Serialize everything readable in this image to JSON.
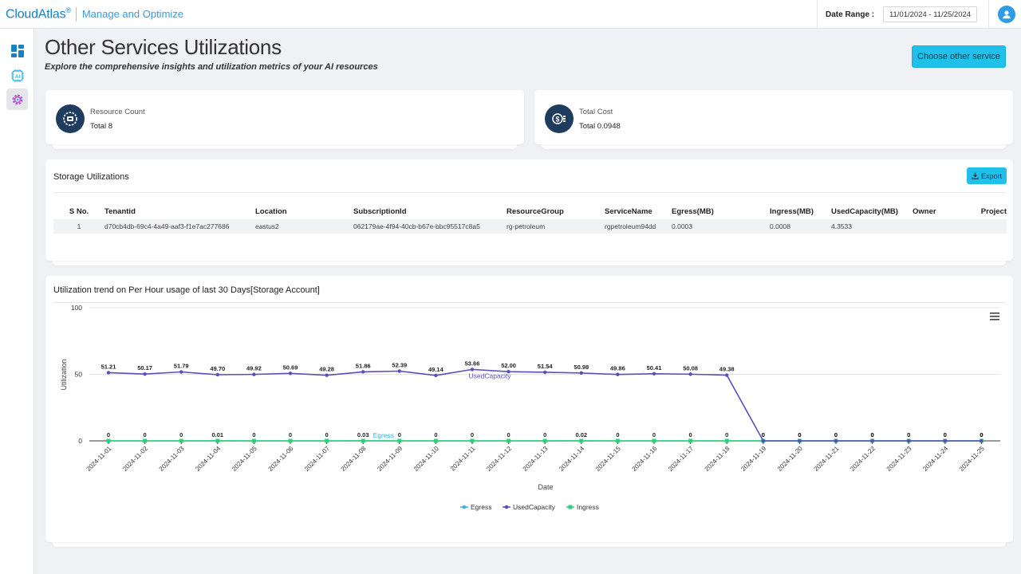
{
  "header": {
    "brand": "CloudAtlas",
    "brand_mark": "®",
    "tagline": "Manage and Optimize",
    "date_range_label": "Date Range :",
    "date_range_value": "11/01/2024 - 11/25/2024",
    "avatar_icon": "user-icon"
  },
  "sidebar": {
    "items": [
      {
        "icon": "dashboard-icon",
        "active": false
      },
      {
        "icon": "ai-chip-icon",
        "active": false
      },
      {
        "icon": "gear-icon",
        "active": true
      }
    ]
  },
  "page": {
    "title": "Other Services Utilizations",
    "subtitle": "Explore the comprehensive insights and utilization metrics of your AI resources",
    "choose_button": "Choose other service"
  },
  "stats": {
    "resource_count": {
      "label": "Resource Count",
      "value": "Total 8",
      "icon": "resource-icon"
    },
    "total_cost": {
      "label": "Total Cost",
      "value": "Total 0.0948",
      "icon": "cost-icon"
    }
  },
  "storage": {
    "title": "Storage Utilizations",
    "export_label": "Export",
    "columns": [
      "S No.",
      "Tenantid",
      "Location",
      "SubscriptionId",
      "ResourceGroup",
      "ServiceName",
      "Egress(MB)",
      "Ingress(MB)",
      "UsedCapacity(MB)",
      "Owner",
      "Project"
    ],
    "rows": [
      [
        "1",
        "d70cb4db-69c4-4a49-aaf3-f1e7ac277686",
        "eastus2",
        "062179ae-4f94-40cb-b67e-bbc95517c8a5",
        "rg-petroleum",
        "rgpetroleum94dd",
        "0.0003",
        "0.0008",
        "4.3533",
        "",
        ""
      ]
    ]
  },
  "trend": {
    "title": "Utilization trend on Per Hour usage of last 30 Days[Storage Account]"
  },
  "colors": {
    "egress": "#3cb0e0",
    "used_capacity": "#5a4fb8",
    "ingress": "#2ed07a",
    "accent": "#1fc1ea"
  },
  "chart_data": {
    "type": "line",
    "xlabel": "Date",
    "ylabel": "Utilization",
    "ylim": [
      0,
      100
    ],
    "yticks": [
      0,
      50,
      100
    ],
    "grid": true,
    "legend": "bottom-center",
    "x": [
      "2024-11-01",
      "2024-11-02",
      "2024-11-03",
      "2024-11-04",
      "2024-11-05",
      "2024-11-06",
      "2024-11-07",
      "2024-11-08",
      "2024-11-09",
      "2024-11-10",
      "2024-11-11",
      "2024-11-12",
      "2024-11-13",
      "2024-11-14",
      "2024-11-15",
      "2024-11-16",
      "2024-11-17",
      "2024-11-18",
      "2024-11-19",
      "2024-11-20",
      "2024-11-21",
      "2024-11-22",
      "2024-11-23",
      "2024-11-24",
      "2024-11-25"
    ],
    "series": [
      {
        "name": "Egress",
        "values": [
          0,
          0,
          0,
          0.01,
          0,
          0,
          0,
          0.03,
          0,
          0,
          0,
          0,
          0,
          0.02,
          0,
          0,
          0,
          0,
          0,
          0,
          0,
          0,
          0,
          0,
          0
        ],
        "labels": [
          "0",
          "0",
          "0",
          "0.01",
          "0",
          "0",
          "0",
          "0.03",
          "0",
          "0",
          "0",
          "0",
          "0",
          "0.02",
          "0",
          "0",
          "0",
          "0",
          "0",
          "0",
          "0",
          "0",
          "0",
          "0",
          "0"
        ]
      },
      {
        "name": "UsedCapacity",
        "values": [
          51.21,
          50.17,
          51.79,
          49.7,
          49.92,
          50.69,
          49.28,
          51.86,
          52.39,
          49.14,
          53.66,
          52.0,
          51.54,
          50.98,
          49.86,
          50.41,
          50.08,
          49.38,
          0,
          0,
          0,
          0,
          0,
          0,
          0
        ],
        "labels": [
          "51.21",
          "50.17",
          "51.79",
          "49.70",
          "49.92",
          "50.69",
          "49.28",
          "51.86",
          "52.39",
          "49.14",
          "53.66",
          "52.00",
          "51.54",
          "50.98",
          "49.86",
          "50.41",
          "50.08",
          "49.38",
          "0",
          "0",
          "0",
          "0",
          "0",
          "0",
          "0"
        ]
      },
      {
        "name": "Ingress",
        "values": [
          0,
          0,
          0,
          0,
          0,
          0,
          0,
          0,
          0,
          0,
          0,
          0,
          0,
          0,
          0,
          0,
          0,
          0,
          0,
          0,
          0,
          0,
          0,
          0,
          0
        ]
      }
    ]
  }
}
